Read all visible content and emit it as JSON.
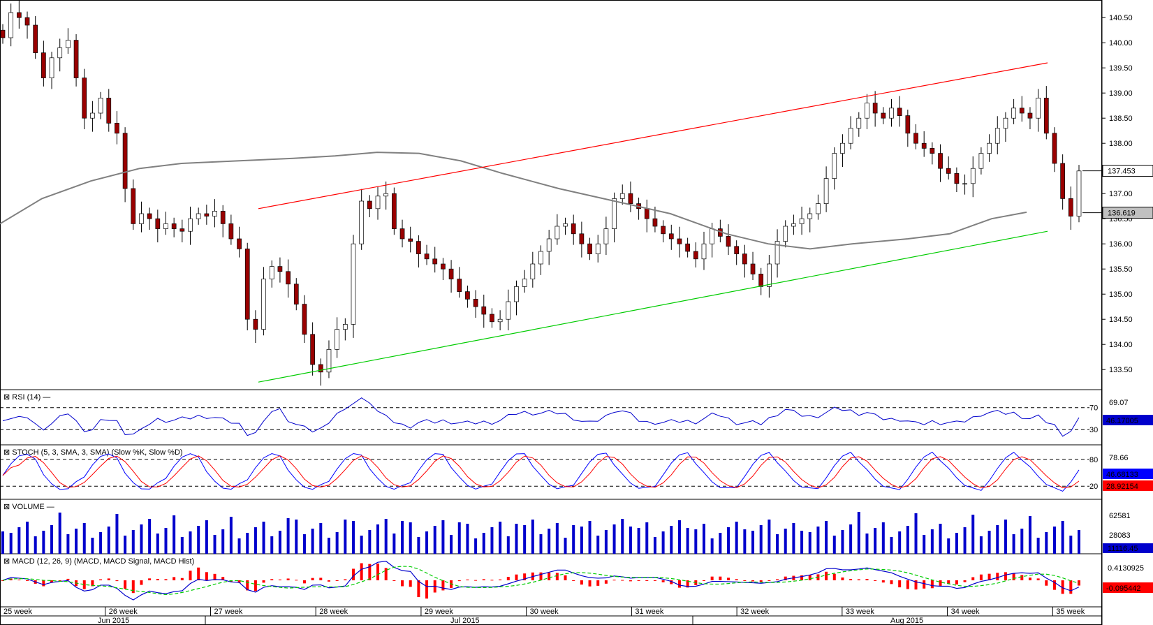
{
  "chart_data": {
    "type": "candlestick",
    "price_axis": {
      "min": 133.1,
      "max": 140.85,
      "ticks": [
        "140.50",
        "140.00",
        "139.50",
        "139.00",
        "138.50",
        "138.00",
        "137.50",
        "137.00",
        "136.50",
        "136.00",
        "135.50",
        "135.00",
        "134.50",
        "134.00",
        "133.50"
      ],
      "last_price": "137.453",
      "ma_value": "136.619"
    },
    "moving_average": {
      "points": [
        [
          0,
          136.4
        ],
        [
          60,
          136.9
        ],
        [
          130,
          137.25
        ],
        [
          200,
          137.5
        ],
        [
          260,
          137.6
        ],
        [
          340,
          137.65
        ],
        [
          420,
          137.7
        ],
        [
          480,
          137.75
        ],
        [
          540,
          137.82
        ],
        [
          600,
          137.8
        ],
        [
          660,
          137.65
        ],
        [
          720,
          137.4
        ],
        [
          800,
          137.1
        ],
        [
          880,
          136.85
        ],
        [
          960,
          136.6
        ],
        [
          1040,
          136.2
        ],
        [
          1100,
          136.0
        ],
        [
          1160,
          135.9
        ],
        [
          1220,
          136.0
        ],
        [
          1300,
          136.1
        ],
        [
          1360,
          136.2
        ],
        [
          1420,
          136.5
        ],
        [
          1470,
          136.63
        ]
      ]
    },
    "trend_upper": {
      "color": "#ff0000",
      "points": [
        [
          370,
          136.7
        ],
        [
          1500,
          139.6
        ]
      ]
    },
    "trend_lower": {
      "color": "#00cc00",
      "points": [
        [
          370,
          133.25
        ],
        [
          1500,
          136.25
        ]
      ]
    },
    "closes": [
      140.1,
      140.6,
      140.5,
      140.35,
      139.8,
      139.3,
      139.7,
      139.9,
      140.05,
      139.3,
      138.5,
      138.6,
      138.9,
      138.4,
      138.2,
      137.1,
      136.4,
      136.6,
      136.5,
      136.3,
      136.4,
      136.3,
      136.25,
      136.5,
      136.6,
      136.55,
      136.65,
      136.4,
      136.1,
      135.9,
      134.5,
      134.3,
      135.3,
      135.55,
      135.45,
      135.2,
      134.8,
      134.2,
      133.6,
      133.45,
      133.9,
      134.3,
      134.4,
      136.0,
      136.85,
      136.7,
      136.95,
      137.0,
      136.3,
      136.1,
      136.05,
      135.8,
      135.7,
      135.6,
      135.5,
      135.3,
      135.05,
      134.9,
      134.75,
      134.6,
      134.45,
      134.5,
      134.85,
      135.15,
      135.3,
      135.6,
      135.85,
      136.1,
      136.35,
      136.4,
      136.2,
      136.0,
      135.8,
      136.0,
      136.3,
      136.9,
      137.0,
      136.8,
      136.7,
      136.5,
      136.35,
      136.2,
      136.1,
      136.0,
      135.85,
      135.7,
      136.0,
      136.3,
      136.15,
      135.95,
      135.8,
      135.6,
      135.4,
      135.15,
      135.6,
      136.05,
      136.35,
      136.4,
      136.5,
      136.6,
      136.8,
      137.3,
      137.8,
      138.0,
      138.3,
      138.5,
      138.8,
      138.6,
      138.5,
      138.7,
      138.55,
      138.2,
      138.0,
      137.9,
      137.8,
      137.5,
      137.4,
      137.2,
      137.2,
      137.5,
      137.8,
      138.0,
      138.3,
      138.5,
      138.7,
      138.6,
      138.5,
      138.9,
      138.2,
      137.6,
      136.9,
      136.55,
      137.45
    ],
    "rsi": {
      "label": "RSI (14)",
      "value": "46.17005",
      "ref_high": "69.07",
      "ref_low": "30.95",
      "levels": [
        70,
        30
      ]
    },
    "stochastic": {
      "label": "STOCH (5, 3, SMA, 3, SMA)",
      "series_k": "Slow %K",
      "series_d": "Slow %D",
      "k_value": "46.68133",
      "d_value": "28.92154",
      "ref_high": "78.66",
      "levels": [
        80,
        20
      ]
    },
    "volume": {
      "label": "VOLUME",
      "ticks": [
        "62581",
        "28083"
      ],
      "value": "11116.45"
    },
    "macd": {
      "label": "MACD (12, 26, 9)",
      "series": [
        "MACD",
        "MACD Signal",
        "MACD Hist"
      ],
      "tick": "0.4130925",
      "value": "-0.095442"
    },
    "x_weeks": [
      "25 week",
      "26 week",
      "27 week",
      "28 week",
      "29 week",
      "30 week",
      "31 week",
      "32 week",
      "33 week",
      "34 week",
      "35 week"
    ],
    "x_months": [
      "Jun 2015",
      "Jul 2015",
      "Aug 2015"
    ],
    "colors": {
      "up": "#ffffff",
      "down": "#990000",
      "ma": "#808080",
      "rsi": "#0000cc",
      "k": "#0000ff",
      "d": "#ff0000",
      "vol": "#0000cc",
      "macd": "#0000cc",
      "signal": "#00cc00",
      "hist": "#ff0000"
    }
  }
}
